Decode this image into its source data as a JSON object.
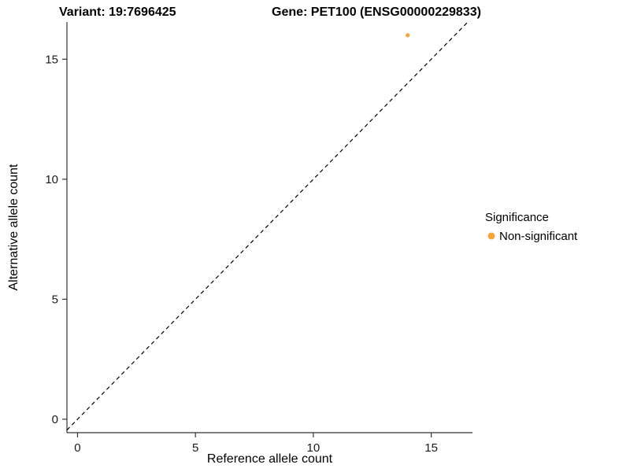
{
  "chart_data": {
    "type": "scatter",
    "title_left": "Variant: 19:7696425",
    "title_right": "Gene: PET100 (ENSG00000229833)",
    "xlabel": "Reference allele count",
    "ylabel": "Alternative allele count",
    "xlim": [
      -0.45,
      16.75
    ],
    "ylim": [
      -0.56,
      16.55
    ],
    "xticks": [
      0,
      5,
      10,
      15
    ],
    "yticks": [
      0,
      5,
      10,
      15
    ],
    "grid": "off",
    "panel_background": "#ffffff",
    "axis_color": "#333333",
    "identity_line": {
      "slope": 1,
      "intercept": 0,
      "style": "dashed",
      "color": "#000000"
    },
    "series": [
      {
        "name": "Non-significant",
        "color": "#F9A43A",
        "points": [
          {
            "x": 14,
            "y": 16
          }
        ]
      }
    ],
    "legend": {
      "title": "Significance",
      "position": "right",
      "entries": [
        {
          "label": "Non-significant",
          "color": "#F9A43A"
        }
      ]
    }
  }
}
